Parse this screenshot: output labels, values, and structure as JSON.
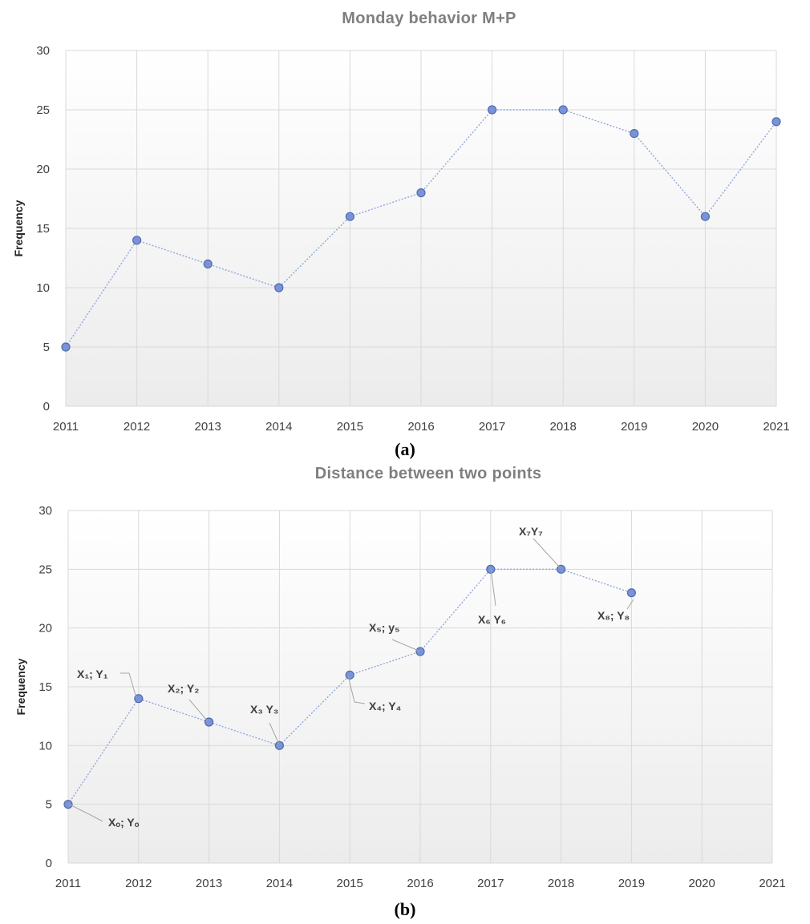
{
  "chart_data": [
    {
      "type": "line",
      "title": "Monday behavior M+P",
      "xlabel": "",
      "ylabel": "Frequency",
      "caption": "(a)",
      "x": [
        2011,
        2012,
        2013,
        2014,
        2015,
        2016,
        2017,
        2018,
        2019,
        2020,
        2021
      ],
      "x_tick_labels": [
        "2011",
        "2012",
        "2013",
        "2014",
        "2015",
        "2016",
        "2017",
        "2018",
        "2019",
        "2020",
        "2021"
      ],
      "y_tick_labels": [
        "0",
        "5",
        "10",
        "15",
        "20",
        "25",
        "30"
      ],
      "xlim": [
        2011,
        2021
      ],
      "ylim": [
        0,
        30
      ],
      "grid": true,
      "series": [
        {
          "values": [
            5,
            14,
            12,
            10,
            16,
            18,
            25,
            25,
            23,
            16,
            24
          ],
          "color": "#7a93d6"
        }
      ]
    },
    {
      "type": "line",
      "title": "Distance between two points",
      "xlabel": "",
      "ylabel": "Frequency",
      "caption": "(b)",
      "x": [
        2011,
        2012,
        2013,
        2014,
        2015,
        2016,
        2017,
        2018,
        2019
      ],
      "x_tick_labels": [
        "2011",
        "2012",
        "2013",
        "2014",
        "2015",
        "2016",
        "2017",
        "2018",
        "2019",
        "2020",
        "2021"
      ],
      "y_tick_labels": [
        "0",
        "5",
        "10",
        "15",
        "20",
        "25",
        "30"
      ],
      "xlim": [
        2011,
        2021
      ],
      "ylim": [
        0,
        30
      ],
      "grid": true,
      "series": [
        {
          "values": [
            5,
            14,
            12,
            10,
            16,
            18,
            25,
            25,
            23
          ],
          "color": "#7a93d6"
        }
      ],
      "annotations": [
        {
          "text": "Xₒ; Yₒ",
          "point_index": 0
        },
        {
          "text": "X₁; Y₁",
          "point_index": 1
        },
        {
          "text": "X₂; Y₂",
          "point_index": 2
        },
        {
          "text": "X₃ Y₃",
          "point_index": 3
        },
        {
          "text": "X₄; Y₄",
          "point_index": 4
        },
        {
          "text": "X₅; y₅",
          "point_index": 5
        },
        {
          "text": "X₆ Y₆",
          "point_index": 6
        },
        {
          "text": "X₇Y₇",
          "point_index": 7
        },
        {
          "text": "X₈; Y₈",
          "point_index": 8
        }
      ]
    }
  ]
}
